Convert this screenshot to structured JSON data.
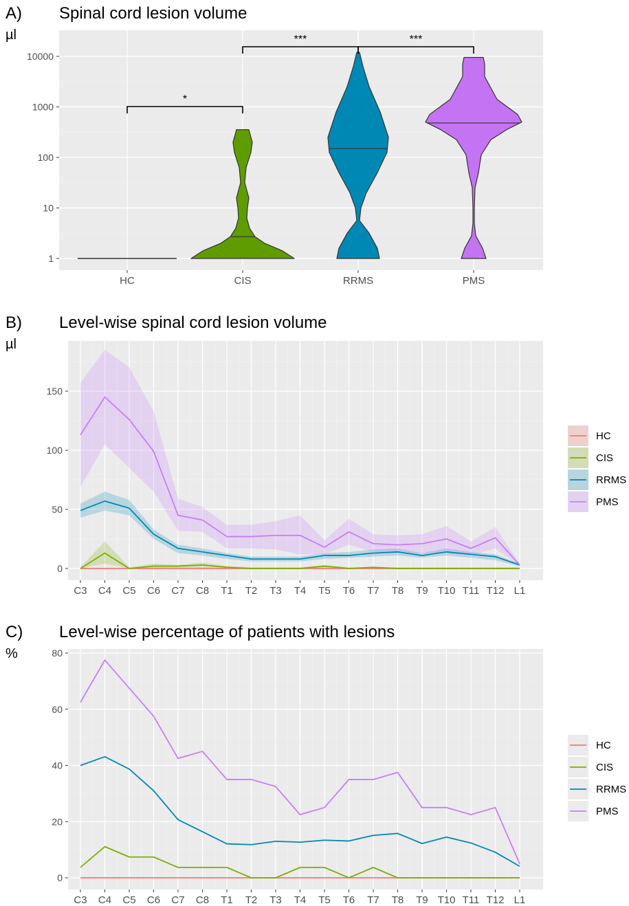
{
  "chart_data": [
    {
      "type": "violin",
      "panel_letter": "A)",
      "title": "Spinal cord lesion volume",
      "ylabel": "µl",
      "yscale": "log",
      "ylim": [
        1,
        10000
      ],
      "yticks": [
        "1",
        "10",
        "100",
        "1000",
        "10000"
      ],
      "categories": [
        "HC",
        "CIS",
        "RRMS",
        "PMS"
      ],
      "medians": [
        1,
        2.7,
        150,
        480
      ],
      "maxima": [
        1,
        350,
        12000,
        9500
      ],
      "colors": [
        "#F8766D",
        "#5F9C00",
        "#0088B5",
        "#C473F2"
      ],
      "significance": [
        {
          "from": "HC",
          "to": "CIS",
          "label": "*"
        },
        {
          "from": "CIS",
          "to": "RRMS",
          "label": "***"
        },
        {
          "from": "RRMS",
          "to": "PMS",
          "label": "***"
        }
      ],
      "grid": true
    },
    {
      "type": "line",
      "panel_letter": "B)",
      "title": "Level-wise spinal cord lesion volume",
      "ylabel": "µl",
      "ylim": [
        0,
        185
      ],
      "yticks": [
        0,
        50,
        100,
        150
      ],
      "categories": [
        "C3",
        "C4",
        "C5",
        "C6",
        "C7",
        "C8",
        "T1",
        "T2",
        "T3",
        "T4",
        "T5",
        "T6",
        "T7",
        "T8",
        "T9",
        "T10",
        "T11",
        "T12",
        "L1"
      ],
      "series": [
        {
          "name": "HC",
          "color": "#F8766D",
          "values": [
            0,
            0,
            0,
            0,
            0,
            0,
            0,
            0,
            0,
            0,
            0,
            0,
            0,
            0,
            0,
            0,
            0,
            0,
            0
          ],
          "lower": [
            0,
            0,
            0,
            0,
            0,
            0,
            0,
            0,
            0,
            0,
            0,
            0,
            0,
            0,
            0,
            0,
            0,
            0,
            0
          ],
          "upper": [
            0,
            0,
            0,
            0,
            0,
            0,
            0,
            0,
            0,
            0,
            0,
            0,
            0,
            0,
            0,
            0,
            0,
            0,
            0
          ]
        },
        {
          "name": "CIS",
          "color": "#7CAE00",
          "values": [
            0,
            13,
            0,
            2,
            2,
            3,
            1,
            0,
            0,
            0,
            2,
            0,
            1,
            0,
            0,
            0,
            0,
            0,
            0
          ],
          "lower": [
            0,
            4,
            0,
            0,
            0,
            0,
            0,
            0,
            0,
            0,
            0,
            0,
            0,
            0,
            0,
            0,
            0,
            0,
            0
          ],
          "upper": [
            1,
            23,
            1,
            4,
            3,
            5,
            2,
            1,
            1,
            1,
            3,
            1,
            1,
            1,
            1,
            1,
            1,
            1,
            1
          ]
        },
        {
          "name": "RRMS",
          "color": "#0088B5",
          "values": [
            49,
            57,
            51,
            29,
            17,
            14,
            11,
            8,
            8,
            8,
            11,
            11,
            13,
            14,
            11,
            14,
            12,
            10,
            3
          ],
          "lower": [
            43,
            49,
            45,
            25,
            13,
            11,
            8,
            6,
            6,
            6,
            8,
            9,
            10,
            11,
            9,
            11,
            9,
            7,
            2
          ],
          "upper": [
            55,
            65,
            58,
            33,
            20,
            17,
            13,
            10,
            10,
            10,
            13,
            14,
            16,
            17,
            13,
            17,
            14,
            12,
            4
          ]
        },
        {
          "name": "PMS",
          "color": "#C77CFF",
          "values": [
            113,
            145,
            126,
            99,
            45,
            41,
            27,
            27,
            28,
            28,
            18,
            31,
            21,
            20,
            21,
            25,
            17,
            26,
            3
          ],
          "lower": [
            69,
            105,
            85,
            65,
            32,
            31,
            17,
            17,
            16,
            12,
            12,
            20,
            14,
            13,
            13,
            13,
            11,
            17,
            2
          ],
          "upper": [
            157,
            185,
            170,
            133,
            59,
            52,
            37,
            37,
            40,
            45,
            24,
            42,
            29,
            28,
            29,
            36,
            23,
            35,
            4
          ]
        }
      ],
      "legend": "right",
      "grid": true
    },
    {
      "type": "line",
      "panel_letter": "C)",
      "title": "Level-wise percentage of patients with lesions",
      "ylabel": "%",
      "ylim": [
        0,
        80
      ],
      "yticks": [
        0,
        20,
        40,
        60,
        80
      ],
      "categories": [
        "C3",
        "C4",
        "C5",
        "C6",
        "C7",
        "C8",
        "T1",
        "T2",
        "T3",
        "T4",
        "T5",
        "T6",
        "T7",
        "T8",
        "T9",
        "T10",
        "T11",
        "T12",
        "L1"
      ],
      "series": [
        {
          "name": "HC",
          "color": "#F8766D",
          "values": [
            0,
            0,
            0,
            0,
            0,
            0,
            0,
            0,
            0,
            0,
            0,
            0,
            0,
            0,
            0,
            0,
            0,
            0,
            0
          ]
        },
        {
          "name": "CIS",
          "color": "#7CAE00",
          "values": [
            3.7,
            11.1,
            7.4,
            7.4,
            3.7,
            3.7,
            3.7,
            0,
            0,
            3.7,
            3.7,
            0,
            3.7,
            0,
            0,
            0,
            0,
            0,
            0
          ]
        },
        {
          "name": "RRMS",
          "color": "#0088B5",
          "values": [
            40,
            43.1,
            38.7,
            31,
            20.7,
            16.4,
            12.1,
            11.8,
            13,
            12.7,
            13.4,
            13.1,
            15.1,
            15.8,
            12.2,
            14.5,
            12.4,
            9.1,
            4.1
          ]
        },
        {
          "name": "PMS",
          "color": "#C77CFF",
          "values": [
            62.5,
            77.5,
            67.5,
            57.5,
            42.5,
            45,
            35,
            35,
            32.5,
            22.5,
            25,
            35,
            35,
            37.5,
            25,
            25,
            22.5,
            25,
            5
          ]
        }
      ],
      "legend": "right",
      "grid": true
    }
  ]
}
